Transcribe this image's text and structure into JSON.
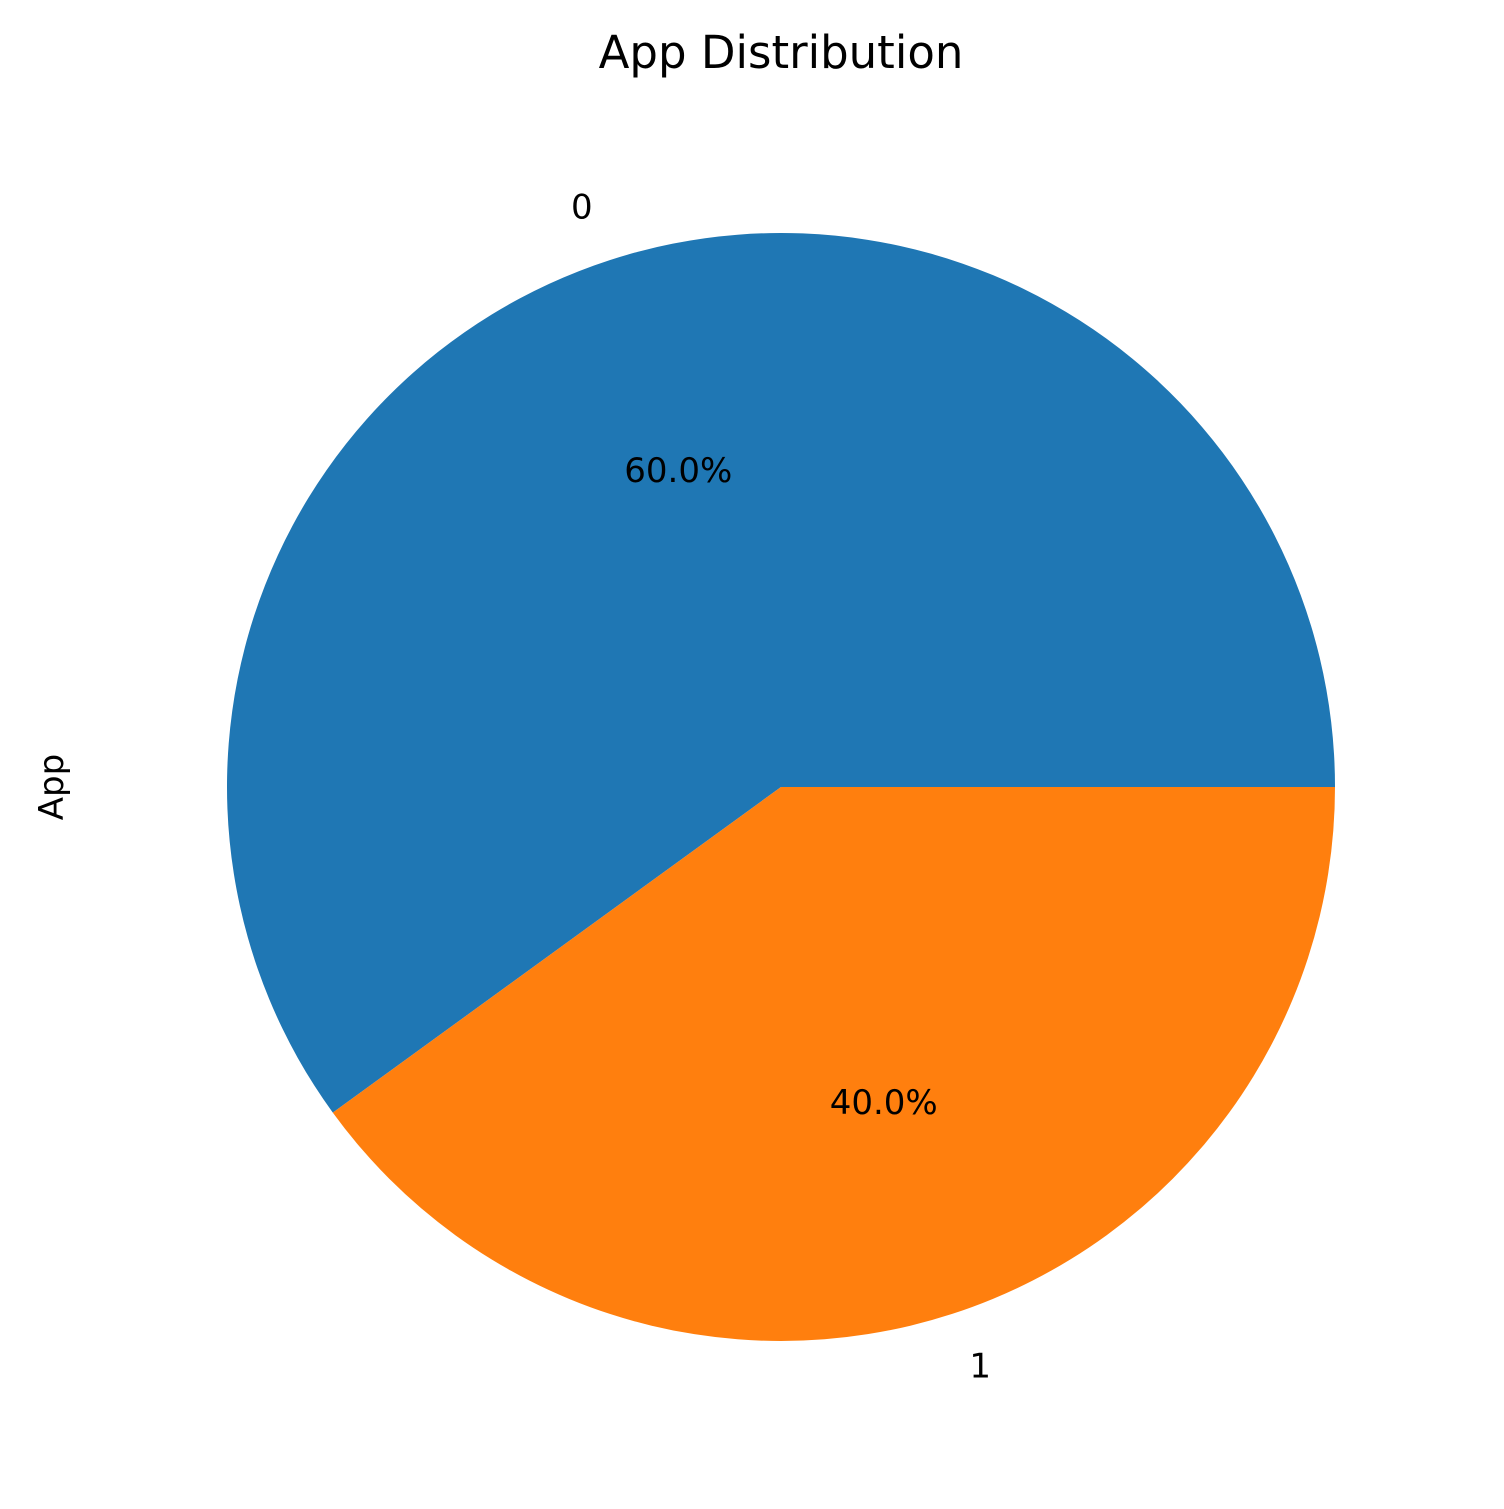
{
  "chart_data": {
    "type": "pie",
    "title": "App Distribution",
    "ylabel": "App",
    "categories": [
      "0",
      "1"
    ],
    "values": [
      60.0,
      40.0
    ],
    "percent_labels": [
      "60.0%",
      "40.0%"
    ],
    "colors": [
      "#1f77b4",
      "#ff7f0e"
    ],
    "start_angle": 0,
    "direction": "counterclockwise",
    "legend": "none"
  }
}
